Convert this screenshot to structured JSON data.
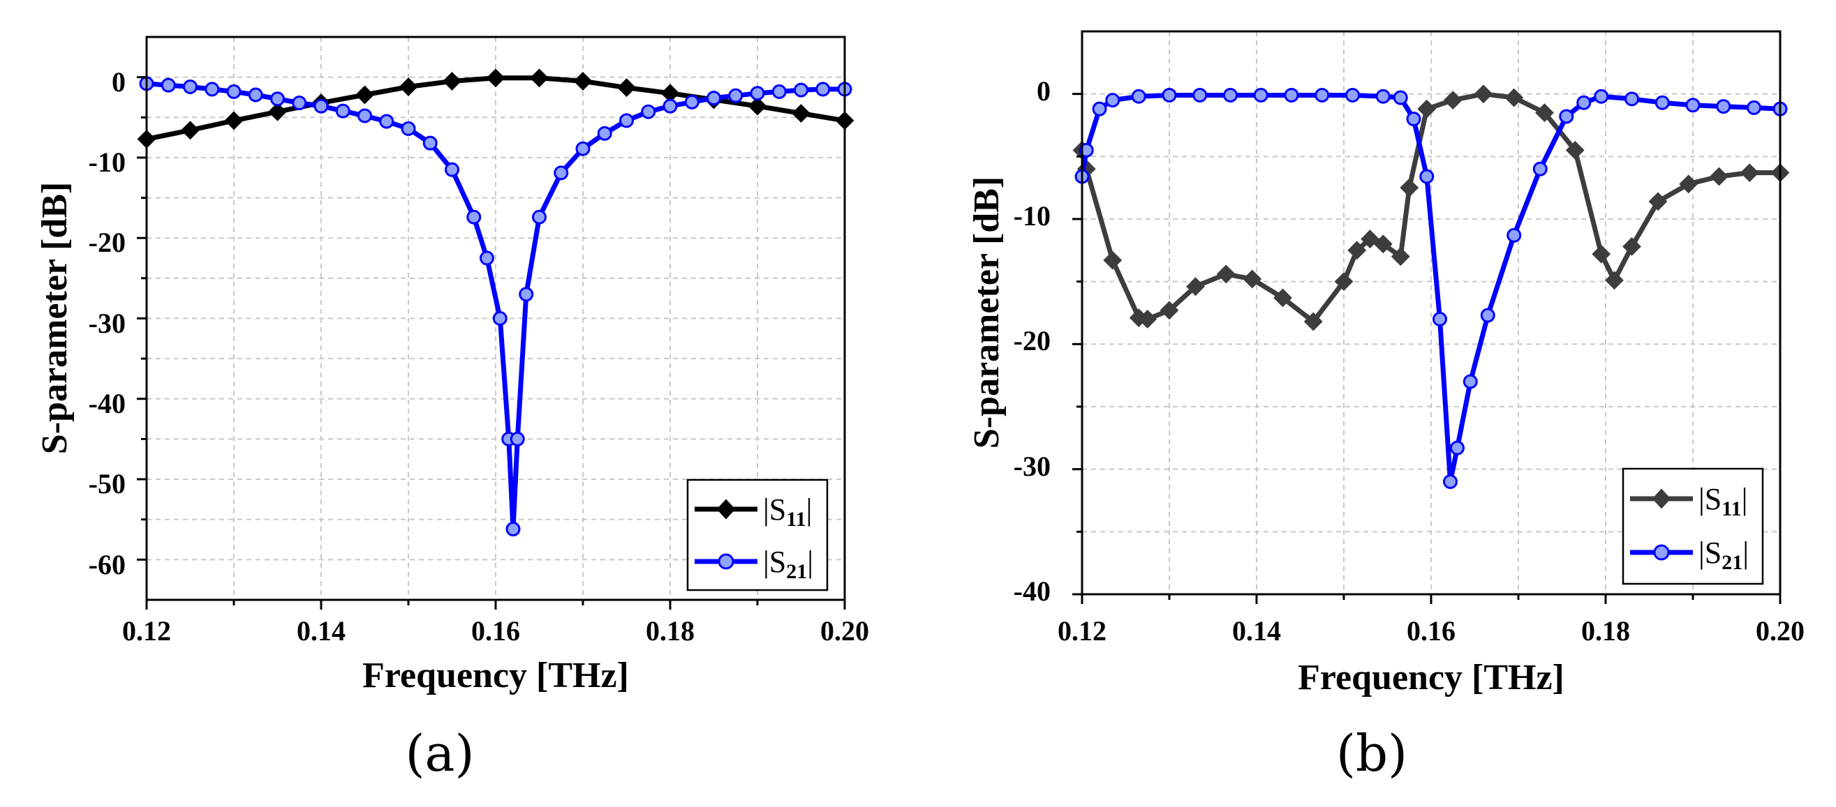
{
  "chart_data": [
    {
      "type": "line",
      "panel_label": "(a)",
      "xlabel": "Frequency [THz]",
      "ylabel": "S-parameter [dB]",
      "xlim": [
        0.12,
        0.2
      ],
      "ylim": [
        -65,
        5
      ],
      "xticks": [
        0.12,
        0.14,
        0.16,
        0.18,
        0.2
      ],
      "xtick_labels": [
        "0.12",
        "0.14",
        "0.16",
        "0.18",
        "0.20"
      ],
      "yticks": [
        -60,
        -50,
        -40,
        -30,
        -20,
        -10,
        0
      ],
      "ytick_labels": [
        "-60",
        "-50",
        "-40",
        "-30",
        "-20",
        "-10",
        "0"
      ],
      "grid": true,
      "legend_position": "bottom-right",
      "series": [
        {
          "name": "|S11|",
          "base": "|S",
          "sub": "11",
          "bar": "|",
          "color": "#000000",
          "marker": "diamond",
          "x": [
            0.12,
            0.125,
            0.13,
            0.135,
            0.14,
            0.145,
            0.15,
            0.155,
            0.16,
            0.165,
            0.17,
            0.175,
            0.18,
            0.185,
            0.19,
            0.195,
            0.2
          ],
          "y": [
            -7.7,
            -6.6,
            -5.4,
            -4.3,
            -3.2,
            -2.2,
            -1.2,
            -0.5,
            -0.1,
            -0.1,
            -0.5,
            -1.3,
            -2.0,
            -2.8,
            -3.6,
            -4.5,
            -5.4
          ]
        },
        {
          "name": "|S21|",
          "base": "|S",
          "sub": "21",
          "bar": "|",
          "color": "#0000ff",
          "marker": "circle",
          "x": [
            0.12,
            0.1225,
            0.125,
            0.1275,
            0.13,
            0.1325,
            0.135,
            0.1375,
            0.14,
            0.1425,
            0.145,
            0.1475,
            0.15,
            0.1525,
            0.155,
            0.1575,
            0.159,
            0.1605,
            0.1615,
            0.162,
            0.1625,
            0.1635,
            0.165,
            0.1675,
            0.17,
            0.1725,
            0.175,
            0.1775,
            0.18,
            0.1825,
            0.185,
            0.1875,
            0.19,
            0.1925,
            0.195,
            0.1975,
            0.2
          ],
          "y": [
            -0.8,
            -1.0,
            -1.2,
            -1.5,
            -1.8,
            -2.2,
            -2.7,
            -3.2,
            -3.6,
            -4.2,
            -4.8,
            -5.5,
            -6.4,
            -8.2,
            -11.5,
            -17.4,
            -22.5,
            -30,
            -45,
            -56.2,
            -45,
            -27,
            -17.4,
            -11.9,
            -8.9,
            -7.0,
            -5.4,
            -4.3,
            -3.6,
            -3.1,
            -2.6,
            -2.3,
            -2.0,
            -1.8,
            -1.6,
            -1.5,
            -1.5
          ]
        }
      ]
    },
    {
      "type": "line",
      "panel_label": "(b)",
      "xlabel": "Frequency [THz]",
      "ylabel": "S-parameter [dB]",
      "xlim": [
        0.12,
        0.2
      ],
      "ylim": [
        -40,
        5
      ],
      "xticks": [
        0.12,
        0.14,
        0.16,
        0.18,
        0.2
      ],
      "xtick_labels": [
        "0.12",
        "0.14",
        "0.16",
        "0.18",
        "0.20"
      ],
      "yticks": [
        -40,
        -30,
        -20,
        -10,
        0
      ],
      "ytick_labels": [
        "-40",
        "-30",
        "-20",
        "-10",
        "0"
      ],
      "grid": true,
      "legend_position": "bottom-right",
      "series": [
        {
          "name": "|S11|",
          "base": "|S",
          "sub": "11",
          "bar": "|",
          "color": "#3d3d3d",
          "marker": "diamond",
          "x": [
            0.12,
            0.1205,
            0.1235,
            0.1265,
            0.1275,
            0.13,
            0.133,
            0.1365,
            0.1395,
            0.143,
            0.1465,
            0.15,
            0.1515,
            0.153,
            0.1545,
            0.1565,
            0.1575,
            0.1595,
            0.1625,
            0.166,
            0.1695,
            0.173,
            0.1765,
            0.1795,
            0.181,
            0.183,
            0.186,
            0.1895,
            0.193,
            0.1965,
            0.2
          ],
          "y": [
            -4.5,
            -6.0,
            -13.3,
            -17.9,
            -18.0,
            -17.3,
            -15.4,
            -14.4,
            -14.8,
            -16.3,
            -18.2,
            -15.0,
            -12.5,
            -11.6,
            -12.0,
            -13.0,
            -7.5,
            -1.2,
            -0.5,
            0.0,
            -0.3,
            -1.5,
            -4.5,
            -12.8,
            -14.9,
            -12.2,
            -8.6,
            -7.2,
            -6.6,
            -6.3,
            -6.3
          ]
        },
        {
          "name": "|S21|",
          "base": "|S",
          "sub": "21",
          "bar": "|",
          "color": "#0000ff",
          "marker": "circle",
          "x": [
            0.12,
            0.1205,
            0.122,
            0.1235,
            0.1265,
            0.13,
            0.1335,
            0.137,
            0.1405,
            0.144,
            0.1475,
            0.151,
            0.1545,
            0.1565,
            0.158,
            0.1595,
            0.161,
            0.1622,
            0.163,
            0.1645,
            0.1665,
            0.1695,
            0.1725,
            0.1755,
            0.1775,
            0.1795,
            0.183,
            0.1865,
            0.19,
            0.1935,
            0.197,
            0.2
          ],
          "y": [
            -6.6,
            -4.5,
            -1.2,
            -0.5,
            -0.2,
            -0.1,
            -0.1,
            -0.1,
            -0.1,
            -0.1,
            -0.1,
            -0.1,
            -0.2,
            -0.3,
            -2.0,
            -6.6,
            -18.0,
            -31.0,
            -28.3,
            -23.0,
            -17.7,
            -11.3,
            -6.0,
            -1.8,
            -0.7,
            -0.2,
            -0.4,
            -0.7,
            -0.9,
            -1.0,
            -1.1,
            -1.2
          ]
        }
      ]
    }
  ]
}
